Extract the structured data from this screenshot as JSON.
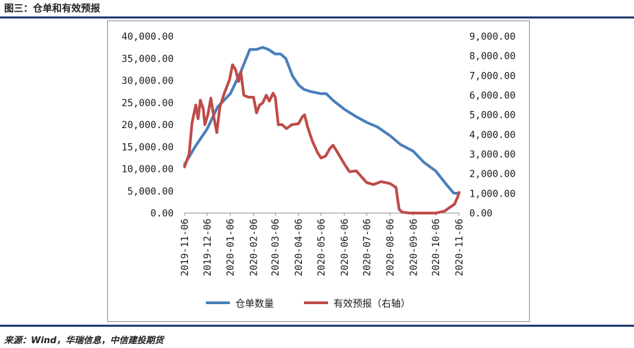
{
  "figure_title": "图三：仓单和有效预报",
  "source": "来源：Wind，华瑞信息，中信建投期货",
  "colors": {
    "series_left": "#4a7ebb",
    "series_right": "#be4b48",
    "rule": "#1f3d73"
  },
  "chart_data": {
    "type": "line",
    "title": "",
    "grid": false,
    "legend_position": "bottom",
    "x_ticks": [
      "2019-11-06",
      "2019-12-06",
      "2020-01-06",
      "2020-02-06",
      "2020-03-06",
      "2020-04-06",
      "2020-05-06",
      "2020-06-06",
      "2020-07-06",
      "2020-08-06",
      "2020-09-06",
      "2020-10-06",
      "2020-11-06"
    ],
    "x_range": [
      "2019-11-06",
      "2020-11-06"
    ],
    "y_left": {
      "range": [
        0,
        40000
      ],
      "ticks": [
        "0.00",
        "5,000.00",
        "10,000.00",
        "15,000.00",
        "20,000.00",
        "25,000.00",
        "30,000.00",
        "35,000.00",
        "40,000.00"
      ]
    },
    "y_right": {
      "range": [
        0,
        9000
      ],
      "ticks": [
        "0.00",
        "1,000.00",
        "2,000.00",
        "3,000.00",
        "4,000.00",
        "5,000.00",
        "6,000.00",
        "7,000.00",
        "8,000.00",
        "9,000.00"
      ]
    },
    "series": [
      {
        "name": "仓单数量",
        "axis": "left",
        "points": [
          [
            "2019-11-06",
            11000
          ],
          [
            "2019-11-20",
            15000
          ],
          [
            "2019-12-06",
            19000
          ],
          [
            "2019-12-20",
            24000
          ],
          [
            "2020-01-06",
            27000
          ],
          [
            "2020-01-20",
            32000
          ],
          [
            "2020-02-01",
            37000
          ],
          [
            "2020-02-10",
            37000
          ],
          [
            "2020-02-18",
            37500
          ],
          [
            "2020-02-26",
            37000
          ],
          [
            "2020-03-06",
            36000
          ],
          [
            "2020-03-13",
            36000
          ],
          [
            "2020-03-20",
            35000
          ],
          [
            "2020-03-29",
            31000
          ],
          [
            "2020-04-06",
            29000
          ],
          [
            "2020-04-13",
            28000
          ],
          [
            "2020-04-22",
            27500
          ],
          [
            "2020-05-06",
            27000
          ],
          [
            "2020-05-13",
            27000
          ],
          [
            "2020-05-22",
            25500
          ],
          [
            "2020-06-06",
            23500
          ],
          [
            "2020-06-20",
            22000
          ],
          [
            "2020-07-06",
            20500
          ],
          [
            "2020-07-20",
            19500
          ],
          [
            "2020-08-06",
            17500
          ],
          [
            "2020-08-20",
            15500
          ],
          [
            "2020-09-06",
            14000
          ],
          [
            "2020-09-20",
            11500
          ],
          [
            "2020-10-06",
            9500
          ],
          [
            "2020-10-20",
            6500
          ],
          [
            "2020-10-30",
            4500
          ],
          [
            "2020-11-06",
            4500
          ]
        ]
      },
      {
        "name": "有效预报（右轴）",
        "axis": "right",
        "points": [
          [
            "2019-11-06",
            2350
          ],
          [
            "2019-11-12",
            3000
          ],
          [
            "2019-11-16",
            4600
          ],
          [
            "2019-11-21",
            5500
          ],
          [
            "2019-11-24",
            4800
          ],
          [
            "2019-11-27",
            5750
          ],
          [
            "2019-12-01",
            5300
          ],
          [
            "2019-12-03",
            4500
          ],
          [
            "2019-12-07",
            5000
          ],
          [
            "2019-12-11",
            5850
          ],
          [
            "2019-12-15",
            4900
          ],
          [
            "2019-12-19",
            4100
          ],
          [
            "2019-12-23",
            5400
          ],
          [
            "2019-12-29",
            6100
          ],
          [
            "2020-01-05",
            6800
          ],
          [
            "2020-01-09",
            7550
          ],
          [
            "2020-01-13",
            7300
          ],
          [
            "2020-01-17",
            6700
          ],
          [
            "2020-01-20",
            7200
          ],
          [
            "2020-01-24",
            6000
          ],
          [
            "2020-01-30",
            5900
          ],
          [
            "2020-02-06",
            5900
          ],
          [
            "2020-02-10",
            5100
          ],
          [
            "2020-02-14",
            5500
          ],
          [
            "2020-02-18",
            5600
          ],
          [
            "2020-02-23",
            6000
          ],
          [
            "2020-02-27",
            5700
          ],
          [
            "2020-03-03",
            6100
          ],
          [
            "2020-03-06",
            5900
          ],
          [
            "2020-03-10",
            4500
          ],
          [
            "2020-03-15",
            4500
          ],
          [
            "2020-03-21",
            4300
          ],
          [
            "2020-03-28",
            4500
          ],
          [
            "2020-04-06",
            4550
          ],
          [
            "2020-04-11",
            4900
          ],
          [
            "2020-04-14",
            5000
          ],
          [
            "2020-04-18",
            4400
          ],
          [
            "2020-04-24",
            3700
          ],
          [
            "2020-05-01",
            3100
          ],
          [
            "2020-05-06",
            2800
          ],
          [
            "2020-05-12",
            2900
          ],
          [
            "2020-05-18",
            3300
          ],
          [
            "2020-05-22",
            3450
          ],
          [
            "2020-05-27",
            3150
          ],
          [
            "2020-06-06",
            2500
          ],
          [
            "2020-06-13",
            2100
          ],
          [
            "2020-06-22",
            2150
          ],
          [
            "2020-06-30",
            1800
          ],
          [
            "2020-07-06",
            1550
          ],
          [
            "2020-07-15",
            1450
          ],
          [
            "2020-07-25",
            1600
          ],
          [
            "2020-08-06",
            1500
          ],
          [
            "2020-08-14",
            1300
          ],
          [
            "2020-08-18",
            200
          ],
          [
            "2020-08-22",
            50
          ],
          [
            "2020-09-01",
            0
          ],
          [
            "2020-09-20",
            0
          ],
          [
            "2020-10-06",
            0
          ],
          [
            "2020-10-12",
            50
          ],
          [
            "2020-10-18",
            100
          ],
          [
            "2020-10-25",
            300
          ],
          [
            "2020-10-31",
            450
          ],
          [
            "2020-11-04",
            800
          ],
          [
            "2020-11-06",
            1050
          ]
        ]
      }
    ]
  }
}
